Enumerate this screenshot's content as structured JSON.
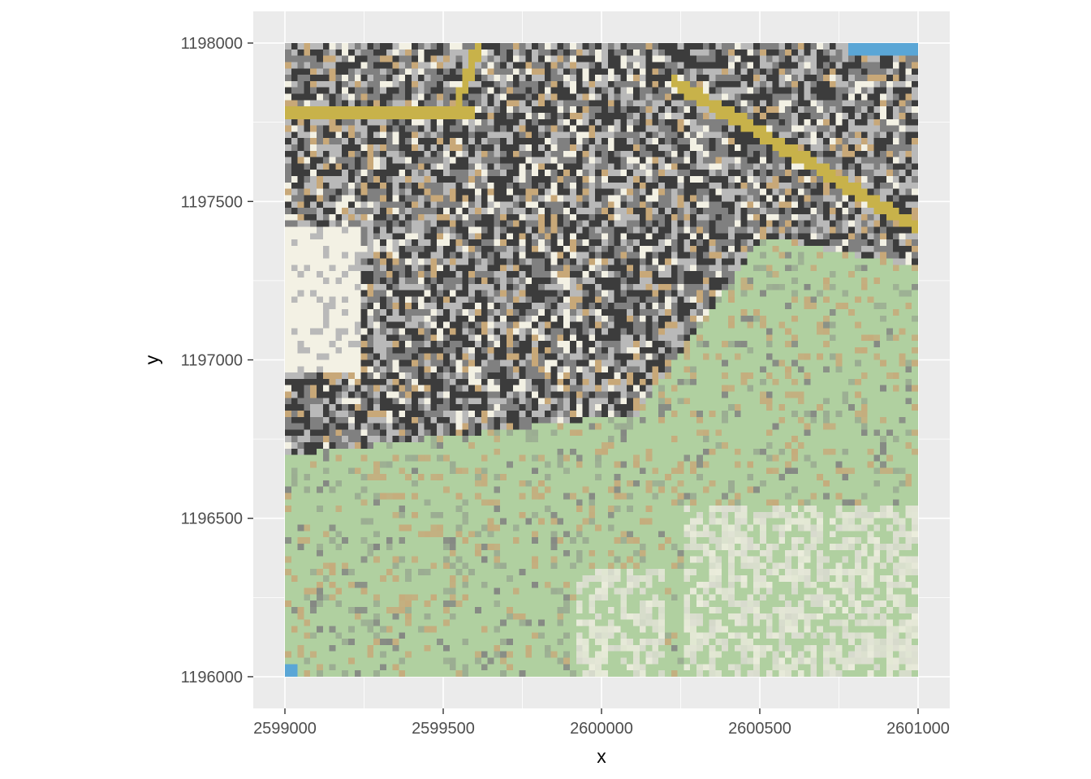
{
  "chart_data": {
    "type": "heatmap",
    "subtype": "raster-map",
    "description_of_fill": "pixelated topographic map raster: dense grey urban blocks in the north and centre, pale green vegetated hillside in the south and east, light contour lines, yellow road lines in the north, small blue water patches in the top-right and bottom-left corners",
    "xlabel": "x",
    "ylabel": "y",
    "xlim": [
      2598900,
      2601100
    ],
    "ylim": [
      1195900,
      1198100
    ],
    "raster_extent": {
      "xmin": 2599000,
      "xmax": 2601000,
      "ymin": 1196000,
      "ymax": 1198000
    },
    "x_ticks": [
      2599000,
      2599500,
      2600000,
      2600500,
      2601000
    ],
    "x_tick_labels": [
      "2599000",
      "2599500",
      "2600000",
      "2600500",
      "2601000"
    ],
    "y_ticks": [
      1196000,
      1196500,
      1197000,
      1197500,
      1198000
    ],
    "y_tick_labels": [
      "1196000",
      "1196500",
      "1197000",
      "1197500",
      "1198000"
    ],
    "grid": true,
    "legend": "none",
    "coord_equal": true
  },
  "colors": {
    "panel_background": "#ebebeb",
    "grid_major": "#ffffff",
    "urban_dark": "#3c3c3c",
    "urban_mid": "#808080",
    "urban_light": "#b9b9b9",
    "paper": "#f3f1e4",
    "vegetation": "#b0d0a0",
    "contour": "#c8a878",
    "road": "#c8b24a",
    "water": "#5aa6d6"
  }
}
